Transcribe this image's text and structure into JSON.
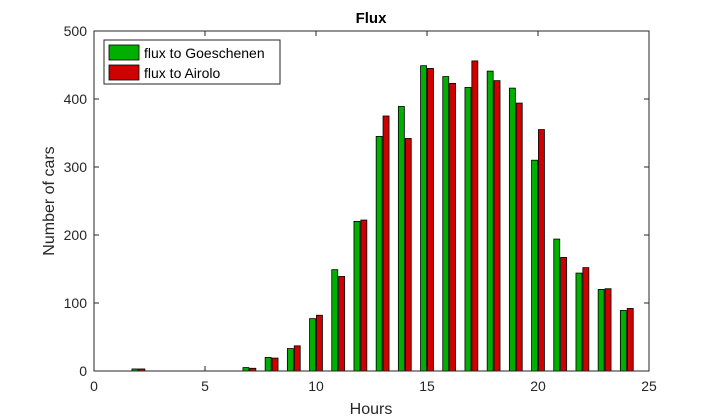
{
  "chart_data": {
    "type": "bar",
    "title": "Flux",
    "xlabel": "Hours",
    "ylabel": "Number of cars",
    "xlim": [
      0,
      25
    ],
    "ylim": [
      0,
      500
    ],
    "xticks": [
      "0",
      "5",
      "10",
      "15",
      "20",
      "25"
    ],
    "yticks": [
      "0",
      "100",
      "200",
      "300",
      "400",
      "500"
    ],
    "xtick_values": [
      0,
      5,
      10,
      15,
      20,
      25
    ],
    "ytick_values": [
      0,
      100,
      200,
      300,
      400,
      500
    ],
    "grid": false,
    "legend_position": "top-left",
    "x": [
      2,
      3,
      4,
      5,
      6,
      7,
      8,
      9,
      10,
      11,
      12,
      13,
      14,
      15,
      16,
      17,
      18,
      19,
      20,
      21,
      22,
      23,
      24
    ],
    "series": [
      {
        "name": "flux to Goeschenen",
        "color": "#00b000",
        "values": [
          3,
          0,
          0,
          0,
          0,
          5,
          20,
          33,
          77,
          149,
          220,
          345,
          389,
          449,
          433,
          417,
          441,
          416,
          310,
          194,
          144,
          120,
          89
        ]
      },
      {
        "name": "flux to Airolo",
        "color": "#d10000",
        "values": [
          3,
          0,
          0,
          0,
          0,
          4,
          19,
          37,
          82,
          139,
          222,
          375,
          342,
          445,
          423,
          456,
          427,
          394,
          355,
          167,
          152,
          121,
          92
        ]
      }
    ]
  }
}
